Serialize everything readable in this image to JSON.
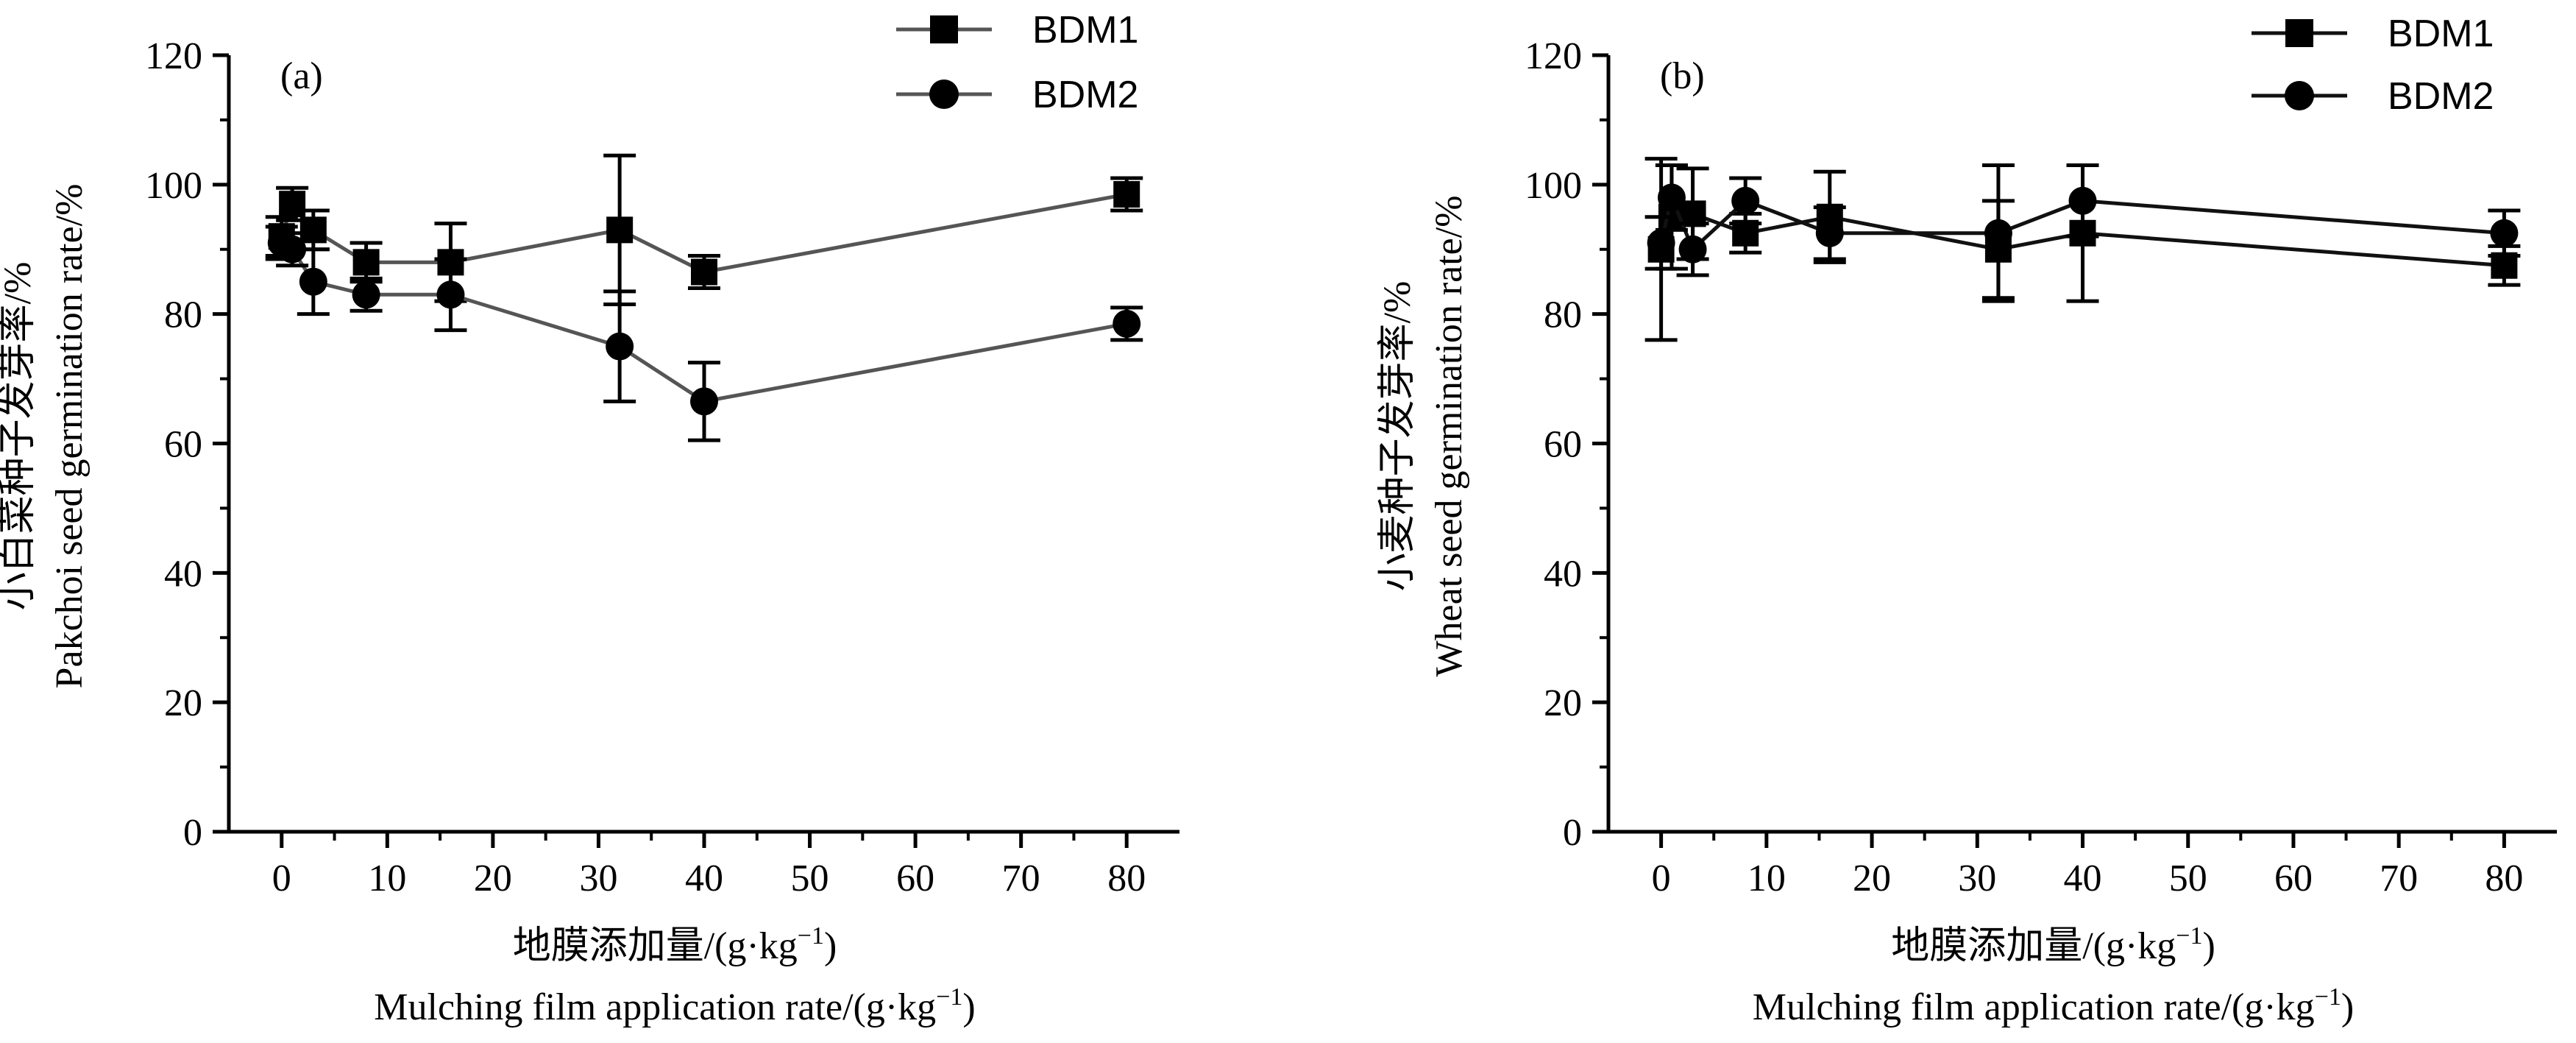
{
  "chart_data": [
    {
      "panel_label": "(a)",
      "type": "line",
      "xlabel_cn": "地膜添加量/(g·kg",
      "xlabel_en": "Mulching film application rate/(g·kg",
      "xlabel_sup": "−1",
      "xlabel_close": ")",
      "ylabel_cn": "小白菜种子发芽率/%",
      "ylabel_en": "Pakchoi seed germination rate/%",
      "xlim": [
        -5,
        85
      ],
      "ylim": [
        0,
        120
      ],
      "xticks": [
        0,
        10,
        20,
        30,
        40,
        50,
        60,
        70,
        80
      ],
      "yticks": [
        0,
        20,
        40,
        60,
        80,
        100,
        120
      ],
      "legend_position": "top-right",
      "series": [
        {
          "name": "BDM1",
          "marker": "square",
          "x": [
            0,
            1,
            3,
            8,
            16,
            32,
            40,
            80
          ],
          "y": [
            92,
            97,
            93,
            88,
            88,
            93,
            86.5,
            98.5
          ],
          "err": [
            3,
            2.5,
            3,
            3,
            6,
            11.5,
            2.5,
            2.5
          ]
        },
        {
          "name": "BDM2",
          "marker": "circle",
          "x": [
            0,
            1,
            3,
            8,
            16,
            32,
            40,
            80
          ],
          "y": [
            91,
            90,
            85,
            83,
            83,
            75,
            66.5,
            78.5
          ],
          "err": [
            2.5,
            2.5,
            5,
            2.5,
            5.5,
            8.5,
            6,
            2.5
          ]
        }
      ]
    },
    {
      "panel_label": "(b)",
      "type": "line",
      "xlabel_cn": "地膜添加量/(g·kg",
      "xlabel_en": "Mulching film application rate/(g·kg",
      "xlabel_sup": "−1",
      "xlabel_close": ")",
      "ylabel_cn": "小麦种子发芽率/%",
      "ylabel_en": "Wheat seed germination rate/%",
      "xlim": [
        -5,
        85
      ],
      "ylim": [
        0,
        120
      ],
      "xticks": [
        0,
        10,
        20,
        30,
        40,
        50,
        60,
        70,
        80
      ],
      "yticks": [
        0,
        20,
        40,
        60,
        80,
        100,
        120
      ],
      "legend_position": "top-right",
      "series": [
        {
          "name": "BDM1",
          "marker": "square",
          "x": [
            0,
            1,
            3,
            8,
            16,
            32,
            40,
            80
          ],
          "y": [
            90,
            95,
            95.5,
            92.5,
            95,
            90,
            92.5,
            87.5
          ],
          "err": [
            14,
            8,
            7,
            3,
            7,
            7.5,
            10.5,
            3
          ]
        },
        {
          "name": "BDM2",
          "marker": "circle",
          "x": [
            0,
            1,
            3,
            8,
            16,
            32,
            40,
            80
          ],
          "y": [
            91,
            98,
            90,
            97.5,
            92.5,
            92.5,
            97.5,
            92.5
          ],
          "err": [
            4,
            5,
            4,
            3.5,
            4,
            10.5,
            5.5,
            3.5
          ]
        }
      ]
    }
  ]
}
